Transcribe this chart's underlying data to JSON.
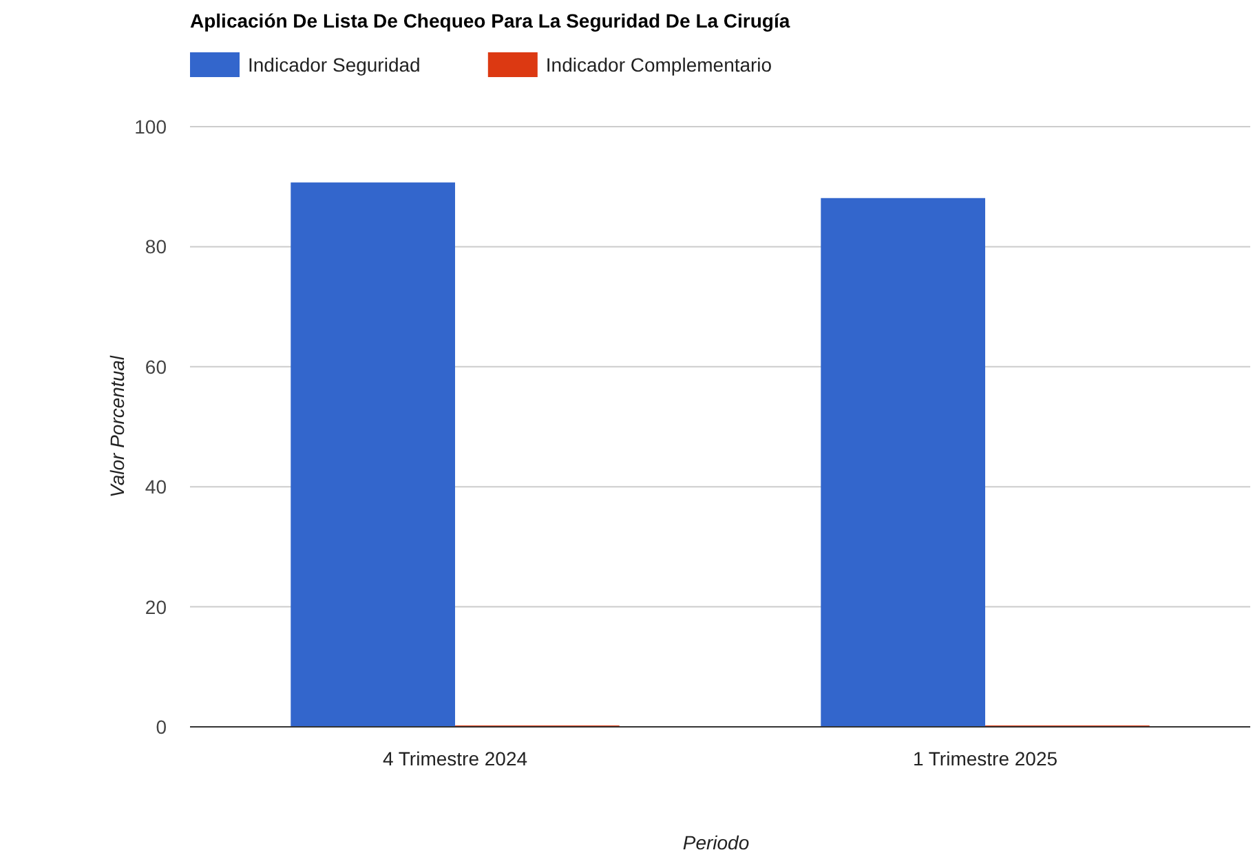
{
  "chart_data": {
    "type": "bar",
    "title": "Aplicación De Lista De Chequeo Para La Seguridad De La Cirugía",
    "xlabel": "Periodo",
    "ylabel": "Valor Porcentual",
    "categories": [
      "4 Trimestre 2024",
      "1 Trimestre 2025"
    ],
    "series": [
      {
        "name": "Indicador Seguridad",
        "color": "#3366cc",
        "values": [
          90.7,
          88.1
        ]
      },
      {
        "name": "Indicador Complementario",
        "color": "#dc3912",
        "values": [
          0,
          0
        ]
      }
    ],
    "ylim": [
      0,
      100
    ],
    "yticks": [
      0,
      20,
      40,
      60,
      80,
      100
    ],
    "grid": "y",
    "legend": "top left"
  }
}
